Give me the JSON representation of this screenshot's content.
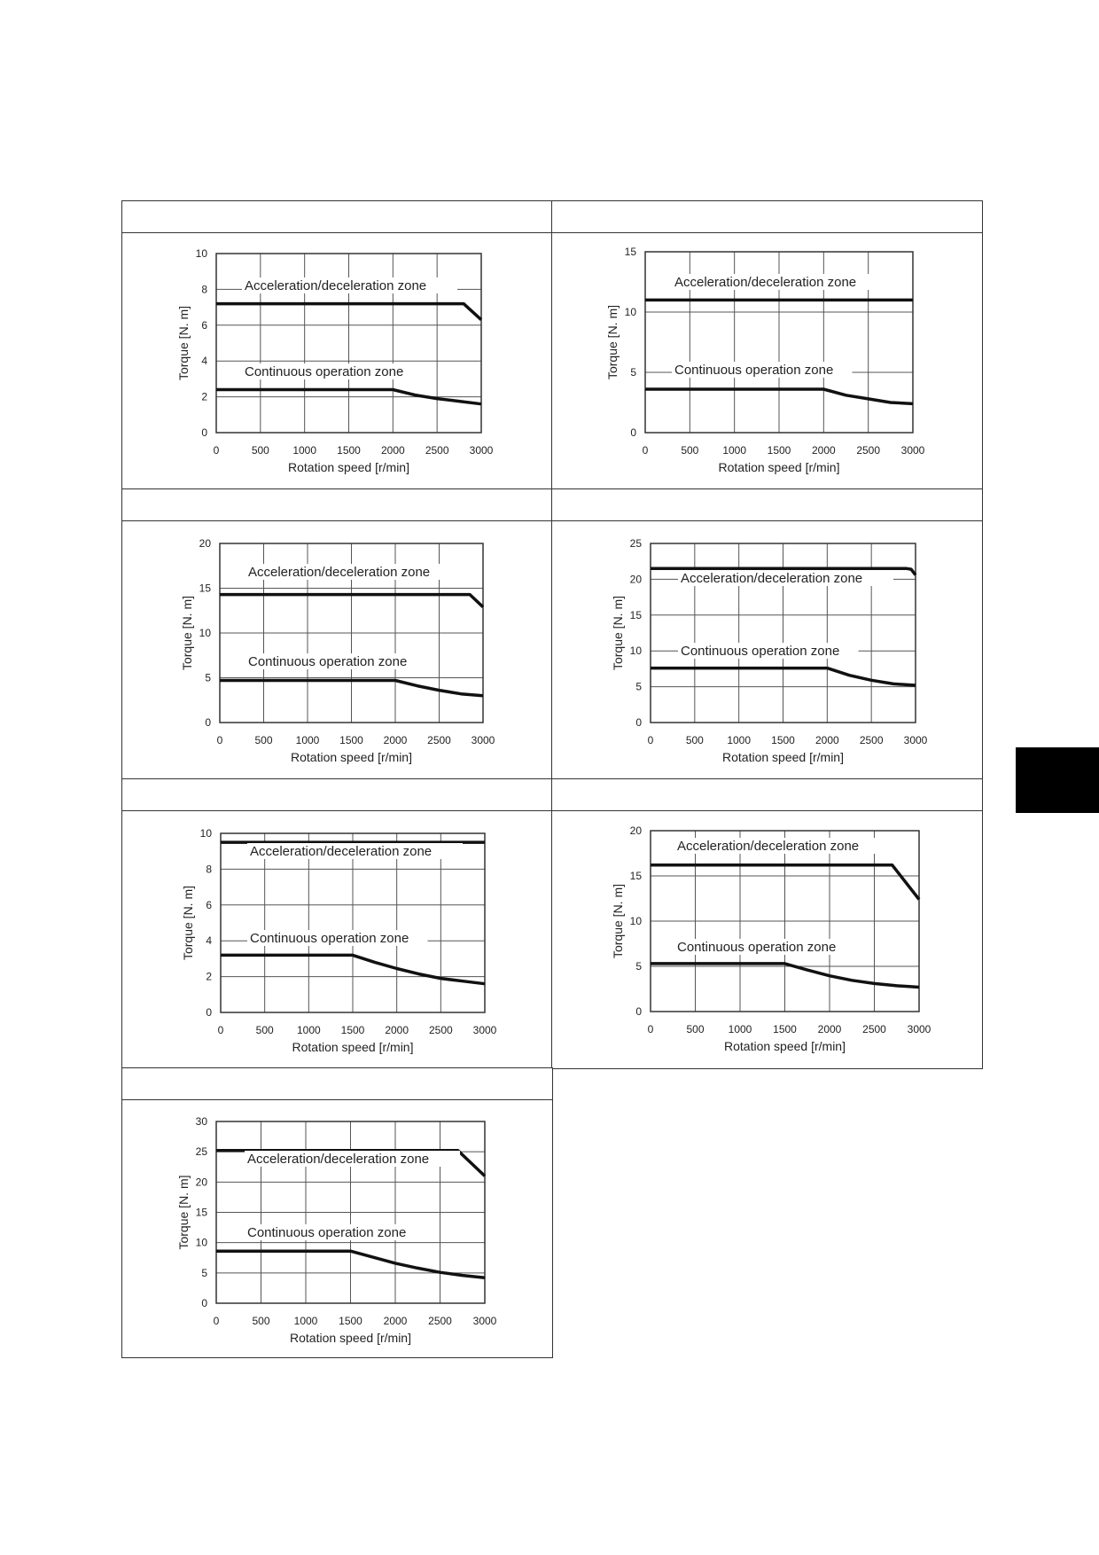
{
  "colors": {
    "line": "#111111",
    "grid": "#555555",
    "frame": "#333333",
    "tab": "#000000"
  },
  "chart_data": [
    {
      "type": "line",
      "xlabel": "Rotation speed [r/min]",
      "ylabel": "Torque [N. m]",
      "xlim": [
        0,
        3000
      ],
      "ylim": [
        0,
        10
      ],
      "xticks": [
        0,
        500,
        1000,
        1500,
        2000,
        2500,
        3000
      ],
      "yticks": [
        0,
        2,
        4,
        6,
        8,
        10
      ],
      "grid": true,
      "annotations": [
        "Acceleration/deceleration zone",
        "Continuous operation zone"
      ],
      "series": [
        {
          "x": [
            0,
            2800,
            3000
          ],
          "y": [
            7.2,
            7.2,
            6.3
          ]
        },
        {
          "x": [
            0,
            2000,
            2250,
            2500,
            2750,
            3000
          ],
          "y": [
            2.4,
            2.4,
            2.1,
            1.9,
            1.75,
            1.6
          ]
        }
      ]
    },
    {
      "type": "line",
      "xlabel": "Rotation speed [r/min]",
      "ylabel": "Torque [N. m]",
      "xlim": [
        0,
        3000
      ],
      "ylim": [
        0,
        15
      ],
      "xticks": [
        0,
        500,
        1000,
        1500,
        2000,
        2500,
        3000
      ],
      "yticks": [
        0,
        5,
        10,
        15
      ],
      "grid": true,
      "annotations": [
        "Acceleration/deceleration zone",
        "Continuous operation zone"
      ],
      "series": [
        {
          "x": [
            0,
            3000
          ],
          "y": [
            11.0,
            11.0
          ]
        },
        {
          "x": [
            0,
            2000,
            2250,
            2500,
            2750,
            3000
          ],
          "y": [
            3.6,
            3.6,
            3.1,
            2.8,
            2.5,
            2.4
          ]
        }
      ]
    },
    {
      "type": "line",
      "xlabel": "Rotation speed [r/min]",
      "ylabel": "Torque [N. m]",
      "xlim": [
        0,
        3000
      ],
      "ylim": [
        0,
        20
      ],
      "xticks": [
        0,
        500,
        1000,
        1500,
        2000,
        2500,
        3000
      ],
      "yticks": [
        0,
        5,
        10,
        15,
        20
      ],
      "grid": true,
      "annotations": [
        "Acceleration/deceleration zone",
        "Continuous operation zone"
      ],
      "series": [
        {
          "x": [
            0,
            2850,
            3000
          ],
          "y": [
            14.3,
            14.3,
            12.9
          ]
        },
        {
          "x": [
            0,
            2000,
            2250,
            2500,
            2750,
            3000
          ],
          "y": [
            4.7,
            4.7,
            4.1,
            3.6,
            3.2,
            3.0
          ]
        }
      ]
    },
    {
      "type": "line",
      "xlabel": "Rotation speed [r/min]",
      "ylabel": "Torque [N. m]",
      "xlim": [
        0,
        3000
      ],
      "ylim": [
        0,
        25
      ],
      "xticks": [
        0,
        500,
        1000,
        1500,
        2000,
        2500,
        3000
      ],
      "yticks": [
        0,
        5,
        10,
        15,
        20,
        25
      ],
      "grid": true,
      "annotations": [
        "Acceleration/deceleration zone",
        "Continuous operation zone"
      ],
      "series": [
        {
          "x": [
            0,
            2900,
            2950,
            3000
          ],
          "y": [
            21.5,
            21.5,
            21.4,
            20.6
          ]
        },
        {
          "x": [
            0,
            2000,
            2250,
            2500,
            2750,
            3000
          ],
          "y": [
            7.6,
            7.6,
            6.6,
            5.9,
            5.4,
            5.2
          ]
        }
      ]
    },
    {
      "type": "line",
      "xlabel": "Rotation speed [r/min]",
      "ylabel": "Torque [N. m]",
      "xlim": [
        0,
        3000
      ],
      "ylim": [
        0,
        10
      ],
      "xticks": [
        0,
        500,
        1000,
        1500,
        2000,
        2500,
        3000
      ],
      "yticks": [
        0,
        2,
        4,
        6,
        8,
        10
      ],
      "grid": true,
      "annotations": [
        "Acceleration/deceleration zone",
        "Continuous operation zone"
      ],
      "series": [
        {
          "x": [
            0,
            3000
          ],
          "y": [
            9.5,
            9.5
          ]
        },
        {
          "x": [
            0,
            1500,
            1750,
            2000,
            2250,
            2500,
            2750,
            3000
          ],
          "y": [
            3.2,
            3.2,
            2.8,
            2.45,
            2.15,
            1.9,
            1.75,
            1.6
          ]
        }
      ]
    },
    {
      "type": "line",
      "xlabel": "Rotation speed [r/min]",
      "ylabel": "Torque [N. m]",
      "xlim": [
        0,
        3000
      ],
      "ylim": [
        0,
        20
      ],
      "xticks": [
        0,
        500,
        1000,
        1500,
        2000,
        2500,
        3000
      ],
      "yticks": [
        0,
        5,
        10,
        15,
        20
      ],
      "grid": true,
      "annotations": [
        "Acceleration/deceleration zone",
        "Continuous operation zone"
      ],
      "series": [
        {
          "x": [
            0,
            2700,
            3000
          ],
          "y": [
            16.2,
            16.2,
            12.4
          ]
        },
        {
          "x": [
            0,
            1500,
            1750,
            2000,
            2250,
            2500,
            2750,
            3000
          ],
          "y": [
            5.3,
            5.3,
            4.6,
            3.95,
            3.45,
            3.1,
            2.85,
            2.7
          ]
        }
      ]
    },
    {
      "type": "line",
      "xlabel": "Rotation speed [r/min]",
      "ylabel": "Torque [N. m]",
      "xlim": [
        0,
        3000
      ],
      "ylim": [
        0,
        30
      ],
      "xticks": [
        0,
        500,
        1000,
        1500,
        2000,
        2500,
        3000
      ],
      "yticks": [
        0,
        5,
        10,
        15,
        20,
        25,
        30
      ],
      "grid": true,
      "annotations": [
        "Acceleration/deceleration zone",
        "Continuous operation zone"
      ],
      "series": [
        {
          "x": [
            0,
            2700,
            2800,
            3000
          ],
          "y": [
            25.2,
            25.2,
            23.8,
            21.0
          ]
        },
        {
          "x": [
            0,
            1500,
            1750,
            2000,
            2250,
            2500,
            2750,
            3000
          ],
          "y": [
            8.6,
            8.6,
            7.6,
            6.6,
            5.8,
            5.1,
            4.6,
            4.2
          ]
        }
      ]
    }
  ]
}
